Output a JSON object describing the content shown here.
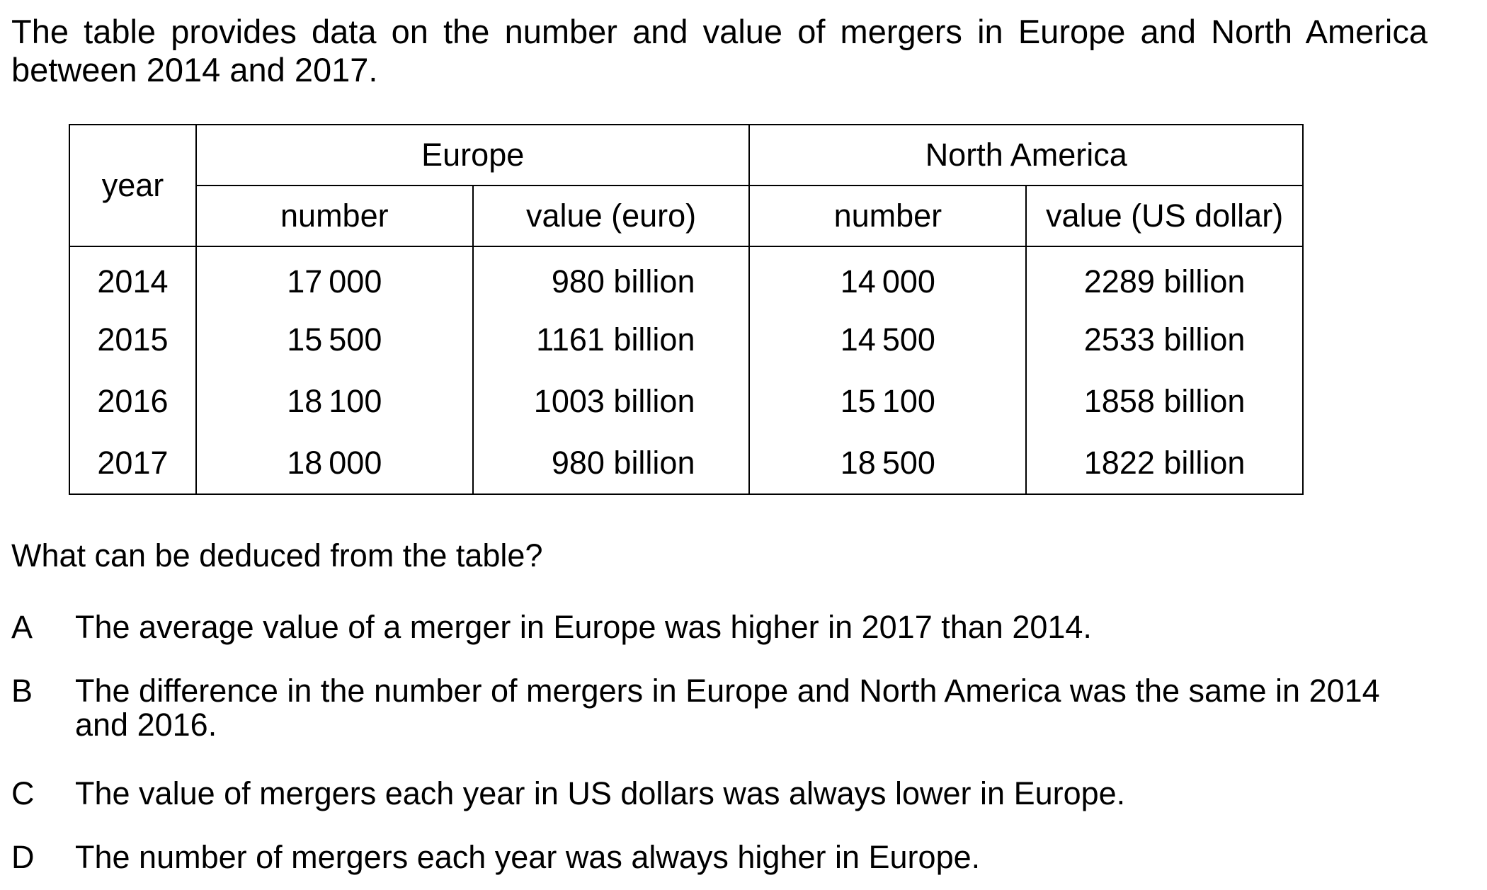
{
  "intro": "The table provides data on the number and value of mergers in Europe and North America between 2014 and 2017.",
  "table": {
    "year_header": "year",
    "groups": [
      "Europe",
      "North America"
    ],
    "subheaders": [
      "number",
      "value (euro)",
      "number",
      "value (US dollar)"
    ],
    "rows": [
      [
        "2014",
        "17 000",
        "980 billion",
        "14 000",
        "2289 billion"
      ],
      [
        "2015",
        "15 500",
        "1161 billion",
        "14 500",
        "2533 billion"
      ],
      [
        "2016",
        "18 100",
        "1003 billion",
        "15 100",
        "1858 billion"
      ],
      [
        "2017",
        "18 000",
        "980 billion",
        "18 500",
        "1822 billion"
      ]
    ]
  },
  "question": "What can be deduced from the table?",
  "options": [
    {
      "letter": "A",
      "text": "The average value of a merger in Europe was higher in 2017 than 2014."
    },
    {
      "letter": "B",
      "text": "The difference in the number of mergers in Europe and North America was the same in 2014 and 2016."
    },
    {
      "letter": "C",
      "text": "The value of mergers each year in US dollars was always lower in Europe."
    },
    {
      "letter": "D",
      "text": "The number of mergers each year was always higher in Europe."
    }
  ]
}
